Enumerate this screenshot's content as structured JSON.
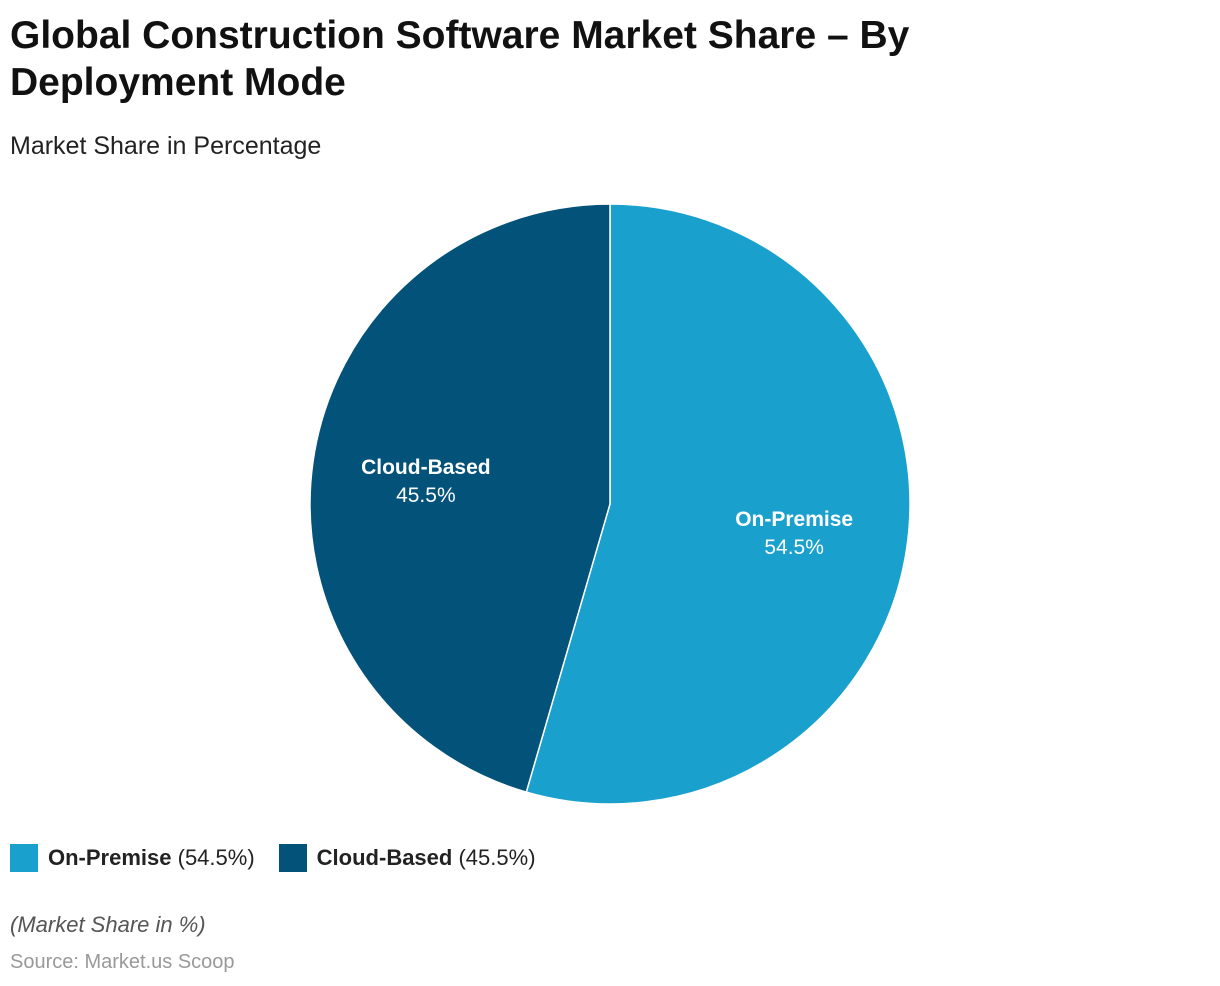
{
  "header": {
    "title": "Global Construction Software Market Share – By Deployment Mode",
    "subtitle": "Market Share in Percentage"
  },
  "chart_data": {
    "type": "pie",
    "title": "Global Construction Software Market Share – By Deployment Mode",
    "subtitle": "Market Share in Percentage",
    "unit": "%",
    "slices": [
      {
        "name": "On-Premise",
        "value": 54.5,
        "label": "54.5%",
        "color": "#1aa0cd"
      },
      {
        "name": "Cloud-Based",
        "value": 45.5,
        "label": "45.5%",
        "color": "#02527a"
      }
    ],
    "legend_position": "bottom-left"
  },
  "legend": {
    "items": [
      {
        "name": "On-Premise",
        "value_text": "(54.5%)",
        "color": "#1aa0cd"
      },
      {
        "name": "Cloud-Based",
        "value_text": "(45.5%)",
        "color": "#02527a"
      }
    ]
  },
  "footer": {
    "note": "(Market Share in %)",
    "source": "Source: Market.us Scoop"
  }
}
